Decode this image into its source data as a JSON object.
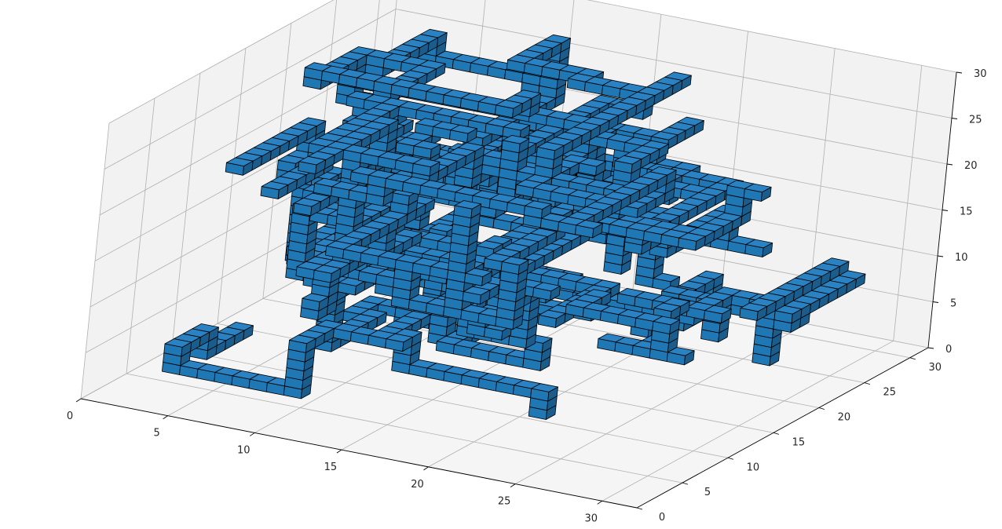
{
  "chart_data": {
    "type": "voxel",
    "title": "",
    "xlabel": "",
    "ylabel": "",
    "zlabel": "",
    "xlim": [
      0,
      32
    ],
    "ylim": [
      0,
      32
    ],
    "zlim": [
      0,
      30
    ],
    "x_ticks": [
      "0",
      "5",
      "10",
      "15",
      "20",
      "25",
      "30"
    ],
    "y_ticks": [
      "0",
      "5",
      "10",
      "15",
      "20",
      "25",
      "30"
    ],
    "z_ticks": [
      "0",
      "5",
      "10",
      "15",
      "20",
      "25",
      "30"
    ],
    "grid": true,
    "voxel_color": "#1f77b4",
    "edge_color": "#000000",
    "pane_colors": {
      "left": "#f2f2f2",
      "back": "#f2f2f2",
      "floor": "#f5f5f5"
    },
    "grid_color": "#b0b0b0"
  }
}
